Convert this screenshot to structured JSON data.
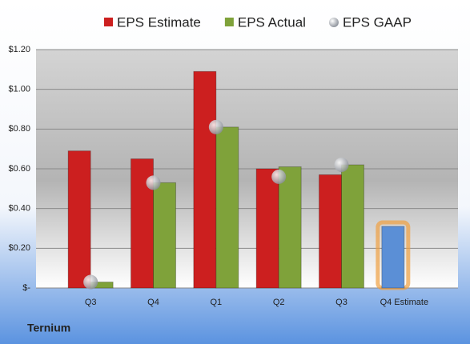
{
  "chart_data": {
    "type": "bar",
    "categories": [
      "Q3",
      "Q4",
      "Q1",
      "Q2",
      "Q3",
      "Q4 Estimate"
    ],
    "series": [
      {
        "name": "EPS Estimate",
        "color": "#cc1f1f",
        "values": [
          0.69,
          0.65,
          1.09,
          0.6,
          0.57,
          0.31
        ]
      },
      {
        "name": "EPS Actual",
        "color": "#7fa23a",
        "values": [
          0.03,
          0.53,
          0.81,
          0.61,
          0.62,
          null
        ]
      },
      {
        "name": "EPS GAAP",
        "color": "#b8bcc4",
        "values": [
          0.03,
          0.53,
          0.81,
          0.56,
          0.62,
          null
        ],
        "marker": "bubble"
      }
    ],
    "highlight": {
      "series": 0,
      "index": 5,
      "color": "#5b8fd6",
      "glow": "#f0a040"
    },
    "ylim": [
      0,
      1.2
    ],
    "yticks": [
      {
        "value": 0,
        "label": "$-"
      },
      {
        "value": 0.2,
        "label": "$0.20"
      },
      {
        "value": 0.4,
        "label": "$0.40"
      },
      {
        "value": 0.6,
        "label": "$0.60"
      },
      {
        "value": 0.8,
        "label": "$0.80"
      },
      {
        "value": 1.0,
        "label": "$1.00"
      },
      {
        "value": 1.2,
        "label": "$1.20"
      }
    ],
    "grid": true,
    "legend": "top",
    "footer": "Ternium"
  }
}
